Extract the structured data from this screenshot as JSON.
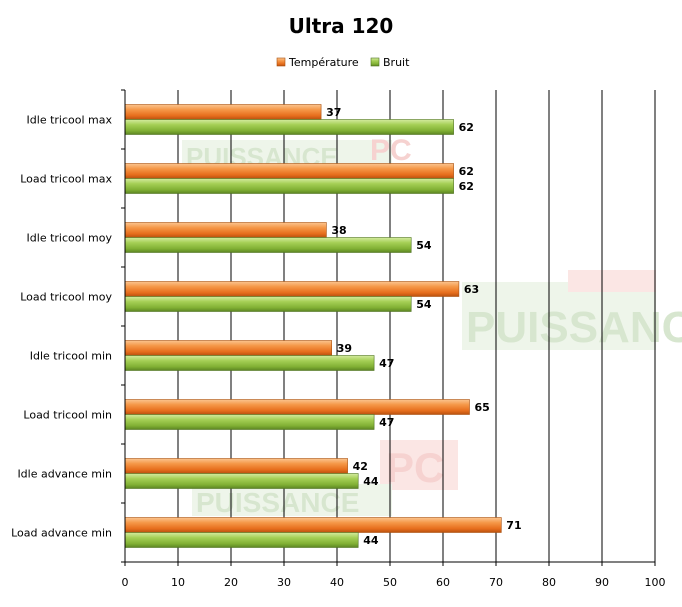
{
  "chart_data": {
    "type": "bar",
    "orientation": "horizontal",
    "title": "Ultra 120",
    "categories": [
      "Idle tricool max",
      "Load tricool max",
      "Idle tricool moy",
      "Load tricool moy",
      "Idle tricool min",
      "Load tricool min",
      "Idle advance min",
      "Load advance min"
    ],
    "series": [
      {
        "name": "Température",
        "color": "#f07f2d",
        "values": [
          37,
          62,
          38,
          63,
          39,
          65,
          42,
          71
        ]
      },
      {
        "name": "Bruit",
        "color": "#8cbb3c",
        "values": [
          62,
          62,
          54,
          54,
          47,
          47,
          44,
          44
        ]
      }
    ],
    "xlim": [
      0,
      100
    ],
    "xticks": [
      0,
      10,
      20,
      30,
      40,
      50,
      60,
      70,
      80,
      90,
      100
    ],
    "grid": true,
    "legend_position": "top",
    "data_labels": true
  },
  "watermark": {
    "word_small": "PC",
    "word_large": "PUISSANCE"
  }
}
